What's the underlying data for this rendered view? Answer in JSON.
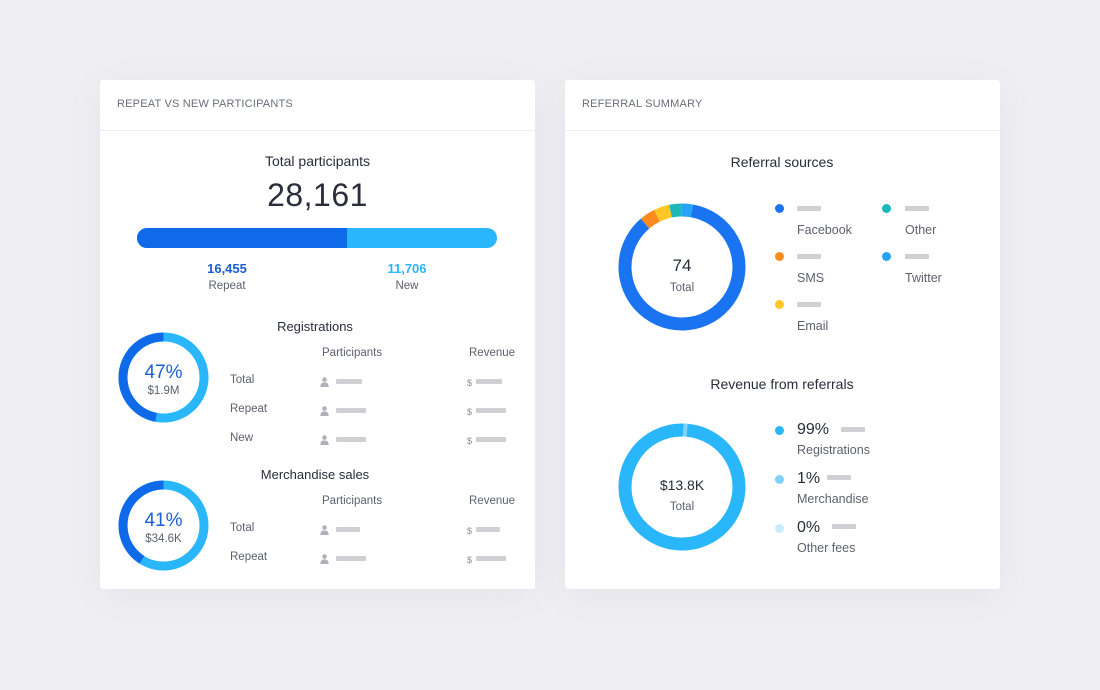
{
  "left_card": {
    "header": "REPEAT VS NEW PARTICIPANTS",
    "total_label": "Total participants",
    "total_value": "28,161",
    "split": {
      "repeat_value": "16,455",
      "repeat_label": "Repeat",
      "new_value": "11,706",
      "new_label": "New",
      "repeat_fraction": 0.584
    },
    "registrations": {
      "title": "Registrations",
      "percent": "47%",
      "amount": "$1.9M",
      "fraction": 0.47,
      "col_participants": "Participants",
      "col_revenue": "Revenue",
      "rows": [
        "Total",
        "Repeat",
        "New"
      ]
    },
    "merchandise": {
      "title": "Merchandise sales",
      "percent": "41%",
      "amount": "$34.6K",
      "fraction": 0.41,
      "col_participants": "Participants",
      "col_revenue": "Revenue",
      "rows": [
        "Total",
        "Repeat"
      ]
    },
    "currency_symbol": "$"
  },
  "right_card": {
    "header": "REFERRAL SUMMARY",
    "sources": {
      "title": "Referral sources",
      "total_value": "74",
      "total_label": "Total",
      "legend": [
        {
          "label": "Facebook",
          "color": "#1a73f0"
        },
        {
          "label": "Other",
          "color": "#1ab8b8"
        },
        {
          "label": "SMS",
          "color": "#ff8a1e"
        },
        {
          "label": "Twitter",
          "color": "#24a3f7"
        },
        {
          "label": "Email",
          "color": "#ffc824"
        }
      ],
      "segments": [
        {
          "name": "Facebook",
          "value": 0.86,
          "color": "#1a73f0"
        },
        {
          "name": "SMS",
          "value": 0.04,
          "color": "#ff8a1e"
        },
        {
          "name": "Email",
          "value": 0.04,
          "color": "#ffc824"
        },
        {
          "name": "Other",
          "value": 0.03,
          "color": "#1ab8b8"
        },
        {
          "name": "Twitter",
          "value": 0.03,
          "color": "#24a3f7"
        }
      ]
    },
    "revenue": {
      "title": "Revenue from referrals",
      "total_value": "$13.8K",
      "total_label": "Total",
      "legend": [
        {
          "pct": "99%",
          "label": "Registrations",
          "color": "#29b6fb"
        },
        {
          "pct": "1%",
          "label": "Merchandise",
          "color": "#7fd2fc"
        },
        {
          "pct": "0%",
          "label": "Other fees",
          "color": "#c8ebfd"
        }
      ],
      "segments": [
        {
          "name": "Registrations",
          "value": 0.99,
          "color": "#29b6fb"
        },
        {
          "name": "Merchandise",
          "value": 0.01,
          "color": "#7fd2fc"
        }
      ]
    }
  },
  "colors": {
    "dark_blue": "#0f6ae9",
    "light_blue": "#29b6fb"
  }
}
